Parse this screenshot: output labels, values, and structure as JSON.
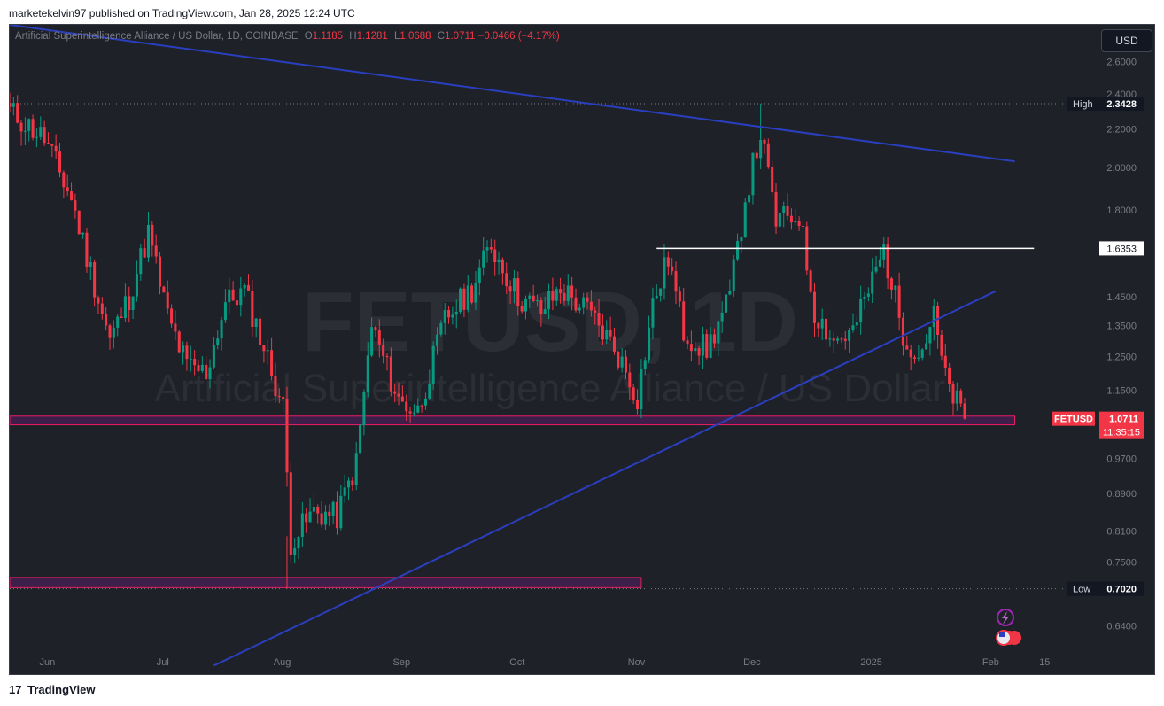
{
  "publisher_line": "marketekelvin97 published on TradingView.com, Jan 28, 2025 12:24 UTC",
  "footer": {
    "logo_mark": "17",
    "logo_text": "TradingView"
  },
  "currency_button": "USD",
  "legend": {
    "symbol": "Artificial Superintelligence Alliance / US Dollar, 1D, COINBASE",
    "o_key": "O",
    "o": "1.1185",
    "h_key": "H",
    "h": "1.1281",
    "l_key": "L",
    "l": "1.0688",
    "c_key": "C",
    "c": "1.0711",
    "change": "−0.0466 (−4.17%)"
  },
  "watermark": {
    "ticker": "FETUSD, 1D",
    "name": "Artificial Superintelligence Alliance / US Dollar"
  },
  "colors": {
    "up": "#089981",
    "down": "#f23645",
    "trendline": "#2a3fbf",
    "zone_border": "#e91e63",
    "zone_fill": "#4a1f55",
    "level": "#ffffff",
    "background": "#1f2129"
  },
  "chart_data": {
    "type": "candlestick",
    "symbol": "FETUSD",
    "timeframe": "1D",
    "y_scale": "log",
    "ylim": [
      0.6,
      2.85
    ],
    "y_ticks": [
      0.64,
      0.702,
      0.75,
      0.81,
      0.89,
      0.97,
      1.15,
      1.25,
      1.35,
      1.45,
      1.6353,
      1.8,
      2.0,
      2.2,
      2.3428,
      2.4,
      2.6
    ],
    "y_tick_labels": [
      "0.6400",
      "0.7020",
      "0.7500",
      "0.8100",
      "0.8900",
      "0.9700",
      "1.1500",
      "1.2500",
      "1.3500",
      "1.4500",
      "1.6353",
      "1.8000",
      "2.0000",
      "2.2000",
      "2.3428",
      "2.4000",
      "2.6000"
    ],
    "x_labels": [
      "Jun",
      "Jul",
      "Aug",
      "Sep",
      "Oct",
      "Nov",
      "Dec",
      "2025",
      "Feb",
      "15"
    ],
    "x_label_dates": [
      "2024-06-01",
      "2024-07-01",
      "2024-08-01",
      "2024-09-01",
      "2024-10-01",
      "2024-11-01",
      "2024-12-01",
      "2025-01-01",
      "2025-02-01",
      "2025-02-15"
    ],
    "x_range": [
      "2024-05-25",
      "2025-02-20"
    ],
    "close_path": [
      [
        "2024-05-25",
        2.3
      ],
      [
        "2024-06-03",
        2.15
      ],
      [
        "2024-06-10",
        1.85
      ],
      [
        "2024-06-15",
        1.55
      ],
      [
        "2024-06-20",
        1.3
      ],
      [
        "2024-06-25",
        1.45
      ],
      [
        "2024-06-30",
        1.7
      ],
      [
        "2024-07-05",
        1.38
      ],
      [
        "2024-07-10",
        1.22
      ],
      [
        "2024-07-15",
        1.2
      ],
      [
        "2024-07-20",
        1.43
      ],
      [
        "2024-07-25",
        1.47
      ],
      [
        "2024-07-30",
        1.28
      ],
      [
        "2024-08-04",
        1.1
      ],
      [
        "2024-08-06",
        0.79
      ],
      [
        "2024-08-12",
        0.85
      ],
      [
        "2024-08-18",
        0.84
      ],
      [
        "2024-08-23",
        0.96
      ],
      [
        "2024-08-27",
        1.35
      ],
      [
        "2024-09-03",
        1.12
      ],
      [
        "2024-09-08",
        1.09
      ],
      [
        "2024-09-15",
        1.37
      ],
      [
        "2024-09-22",
        1.48
      ],
      [
        "2024-09-27",
        1.65
      ],
      [
        "2024-10-04",
        1.45
      ],
      [
        "2024-10-10",
        1.4
      ],
      [
        "2024-10-15",
        1.48
      ],
      [
        "2024-10-22",
        1.4
      ],
      [
        "2024-10-29",
        1.28
      ],
      [
        "2024-11-04",
        1.13
      ],
      [
        "2024-11-08",
        1.42
      ],
      [
        "2024-11-12",
        1.6
      ],
      [
        "2024-11-16",
        1.33
      ],
      [
        "2024-11-22",
        1.27
      ],
      [
        "2024-11-28",
        1.45
      ],
      [
        "2024-12-02",
        1.85
      ],
      [
        "2024-12-06",
        2.18
      ],
      [
        "2024-12-10",
        1.75
      ],
      [
        "2024-12-16",
        1.78
      ],
      [
        "2024-12-20",
        1.4
      ],
      [
        "2024-12-25",
        1.3
      ],
      [
        "2024-12-30",
        1.33
      ],
      [
        "2025-01-05",
        1.55
      ],
      [
        "2025-01-07",
        1.63
      ],
      [
        "2025-01-12",
        1.33
      ],
      [
        "2025-01-16",
        1.25
      ],
      [
        "2025-01-20",
        1.38
      ],
      [
        "2025-01-23",
        1.18
      ],
      [
        "2025-01-28",
        1.0711
      ]
    ],
    "high": {
      "label": "High",
      "value": 2.3428,
      "date": "2024-12-06"
    },
    "low": {
      "label": "Low",
      "value": 0.702,
      "date": "2024-08-05"
    },
    "last_price": {
      "symbol": "FETUSD",
      "value": 1.0711,
      "countdown": "11:35:15"
    },
    "horizontal_level": {
      "value": 1.6353,
      "from": "2024-11-09",
      "to": "2025-02-15"
    },
    "trendlines": [
      {
        "from": [
          "2024-05-25",
          2.85
        ],
        "to": [
          "2025-02-10",
          2.03
        ]
      },
      {
        "from": [
          "2024-07-17",
          0.58
        ],
        "to": [
          "2025-02-05",
          1.47
        ]
      }
    ],
    "zones": [
      {
        "from": "2024-05-25",
        "to": "2025-02-10",
        "low": 1.055,
        "high": 1.078
      },
      {
        "from": "2024-05-25",
        "to": "2024-11-05",
        "low": 0.704,
        "high": 0.722
      }
    ]
  }
}
